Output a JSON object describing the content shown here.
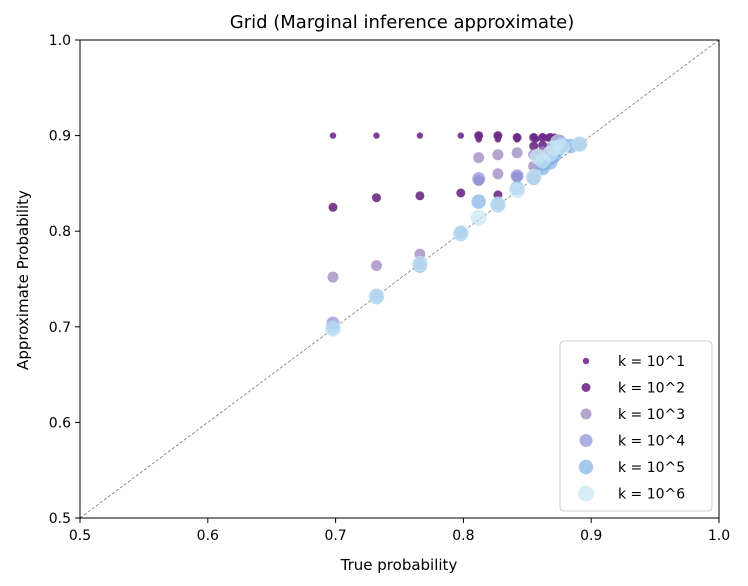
{
  "chart_data": {
    "type": "scatter",
    "title": "Grid (Marginal inference approximate)",
    "xlabel": "True probability",
    "ylabel": "Approximate Probability",
    "xlim": [
      0.5,
      1.0
    ],
    "ylim": [
      0.5,
      1.0
    ],
    "xticks": [
      "0.5",
      "0.6",
      "0.7",
      "0.8",
      "0.9",
      "1.0"
    ],
    "yticks": [
      "0.5",
      "0.6",
      "0.7",
      "0.8",
      "0.9",
      "1.0"
    ],
    "grid": false,
    "legend_position": "bottom-right",
    "reference_line": {
      "style": "dashed",
      "color": "#777777",
      "from": [
        0.5,
        0.5
      ],
      "to": [
        1.0,
        1.0
      ]
    },
    "series": [
      {
        "name": "k = 10^1",
        "color": "#7a3391",
        "size": 3.2,
        "opacity": 0.95,
        "points": [
          [
            0.698,
            0.9
          ],
          [
            0.732,
            0.9
          ],
          [
            0.766,
            0.9
          ],
          [
            0.798,
            0.9
          ],
          [
            0.812,
            0.9
          ],
          [
            0.827,
            0.9
          ],
          [
            0.842,
            0.899
          ],
          [
            0.855,
            0.899
          ],
          [
            0.862,
            0.899
          ],
          [
            0.867,
            0.899
          ],
          [
            0.871,
            0.899
          ],
          [
            0.874,
            0.898
          ],
          [
            0.812,
            0.896
          ],
          [
            0.827,
            0.896
          ],
          [
            0.842,
            0.896
          ],
          [
            0.857,
            0.896
          ],
          [
            0.866,
            0.897
          ]
        ]
      },
      {
        "name": "k = 10^2",
        "color": "#6a2a87",
        "size": 4.5,
        "opacity": 0.9,
        "points": [
          [
            0.698,
            0.825
          ],
          [
            0.732,
            0.835
          ],
          [
            0.766,
            0.837
          ],
          [
            0.798,
            0.84
          ],
          [
            0.812,
            0.9
          ],
          [
            0.827,
            0.9
          ],
          [
            0.842,
            0.898
          ],
          [
            0.855,
            0.898
          ],
          [
            0.862,
            0.898
          ],
          [
            0.868,
            0.898
          ],
          [
            0.872,
            0.897
          ],
          [
            0.876,
            0.896
          ],
          [
            0.827,
            0.838
          ],
          [
            0.855,
            0.889
          ],
          [
            0.862,
            0.89
          ],
          [
            0.868,
            0.888
          ],
          [
            0.871,
            0.885
          ]
        ]
      },
      {
        "name": "k = 10^3",
        "color": "#9d86c0",
        "size": 5.5,
        "opacity": 0.75,
        "points": [
          [
            0.698,
            0.752
          ],
          [
            0.732,
            0.764
          ],
          [
            0.766,
            0.776
          ],
          [
            0.798,
            0.798
          ],
          [
            0.812,
            0.877
          ],
          [
            0.827,
            0.88
          ],
          [
            0.842,
            0.882
          ],
          [
            0.855,
            0.88
          ],
          [
            0.862,
            0.883
          ],
          [
            0.868,
            0.884
          ],
          [
            0.871,
            0.887
          ],
          [
            0.874,
            0.889
          ],
          [
            0.812,
            0.853
          ],
          [
            0.827,
            0.86
          ],
          [
            0.842,
            0.857
          ],
          [
            0.855,
            0.868
          ],
          [
            0.862,
            0.872
          ]
        ]
      },
      {
        "name": "k = 10^4",
        "color": "#8c8fd6",
        "size": 6.5,
        "opacity": 0.7,
        "points": [
          [
            0.698,
            0.704
          ],
          [
            0.732,
            0.733
          ],
          [
            0.766,
            0.766
          ],
          [
            0.798,
            0.799
          ],
          [
            0.812,
            0.855
          ],
          [
            0.827,
            0.829
          ],
          [
            0.842,
            0.858
          ],
          [
            0.855,
            0.855
          ],
          [
            0.862,
            0.87
          ],
          [
            0.868,
            0.876
          ],
          [
            0.871,
            0.882
          ],
          [
            0.874,
            0.886
          ],
          [
            0.877,
            0.889
          ],
          [
            0.891,
            0.891
          ]
        ]
      },
      {
        "name": "k = 10^5",
        "color": "#7fb1e6",
        "size": 7.2,
        "opacity": 0.7,
        "points": [
          [
            0.698,
            0.699
          ],
          [
            0.732,
            0.731
          ],
          [
            0.766,
            0.764
          ],
          [
            0.798,
            0.797
          ],
          [
            0.812,
            0.831
          ],
          [
            0.827,
            0.827
          ],
          [
            0.842,
            0.845
          ],
          [
            0.855,
            0.856
          ],
          [
            0.862,
            0.866
          ],
          [
            0.868,
            0.872
          ],
          [
            0.871,
            0.879
          ],
          [
            0.874,
            0.885
          ],
          [
            0.877,
            0.891
          ],
          [
            0.891,
            0.891
          ],
          [
            0.884,
            0.889
          ]
        ]
      },
      {
        "name": "k = 10^6",
        "color": "#c6e6f4",
        "size": 8.0,
        "opacity": 0.7,
        "points": [
          [
            0.698,
            0.698
          ],
          [
            0.732,
            0.732
          ],
          [
            0.766,
            0.766
          ],
          [
            0.798,
            0.798
          ],
          [
            0.812,
            0.814
          ],
          [
            0.827,
            0.828
          ],
          [
            0.842,
            0.843
          ],
          [
            0.855,
            0.857
          ],
          [
            0.862,
            0.874
          ],
          [
            0.868,
            0.881
          ],
          [
            0.871,
            0.887
          ],
          [
            0.874,
            0.893
          ],
          [
            0.877,
            0.888
          ],
          [
            0.891,
            0.891
          ],
          [
            0.858,
            0.878
          ]
        ]
      }
    ]
  }
}
